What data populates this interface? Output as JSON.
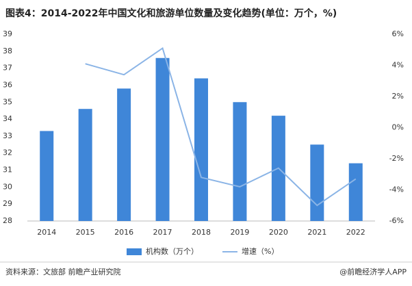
{
  "chart_data": {
    "type": "bar-line",
    "title": "图表4：2014-2022年中国文化和旅游单位数量及变化趋势(单位：万个，%)",
    "categories": [
      "2014",
      "2015",
      "2016",
      "2017",
      "2018",
      "2019",
      "2020",
      "2021",
      "2022"
    ],
    "series": [
      {
        "name": "机构数（万个）",
        "type": "bar",
        "color": "#3f86d8",
        "values": [
          33.3,
          34.6,
          35.8,
          37.6,
          36.4,
          35.0,
          34.2,
          32.5,
          31.4
        ]
      },
      {
        "name": "增速（%）",
        "type": "line",
        "axis": "y2",
        "color": "#8ab4e6",
        "values": [
          null,
          4.1,
          3.4,
          5.1,
          -3.2,
          -3.8,
          -2.6,
          -5.0,
          -3.3
        ]
      }
    ],
    "ylim": [
      28,
      39
    ],
    "yticks": [
      28,
      29,
      30,
      31,
      32,
      33,
      34,
      35,
      36,
      37,
      38,
      39
    ],
    "y2lim": [
      -6,
      6
    ],
    "y2ticks": [
      {
        "value": -6,
        "label": "-6%"
      },
      {
        "value": -4,
        "label": "-4%"
      },
      {
        "value": -2,
        "label": "-2%"
      },
      {
        "value": 0,
        "label": "0%"
      },
      {
        "value": 2,
        "label": "2%"
      },
      {
        "value": 4,
        "label": "4%"
      },
      {
        "value": 6,
        "label": "6%"
      }
    ],
    "source": "资料来源：文旅部 前瞻产业研究院",
    "credit": "@前瞻经济学人APP"
  }
}
